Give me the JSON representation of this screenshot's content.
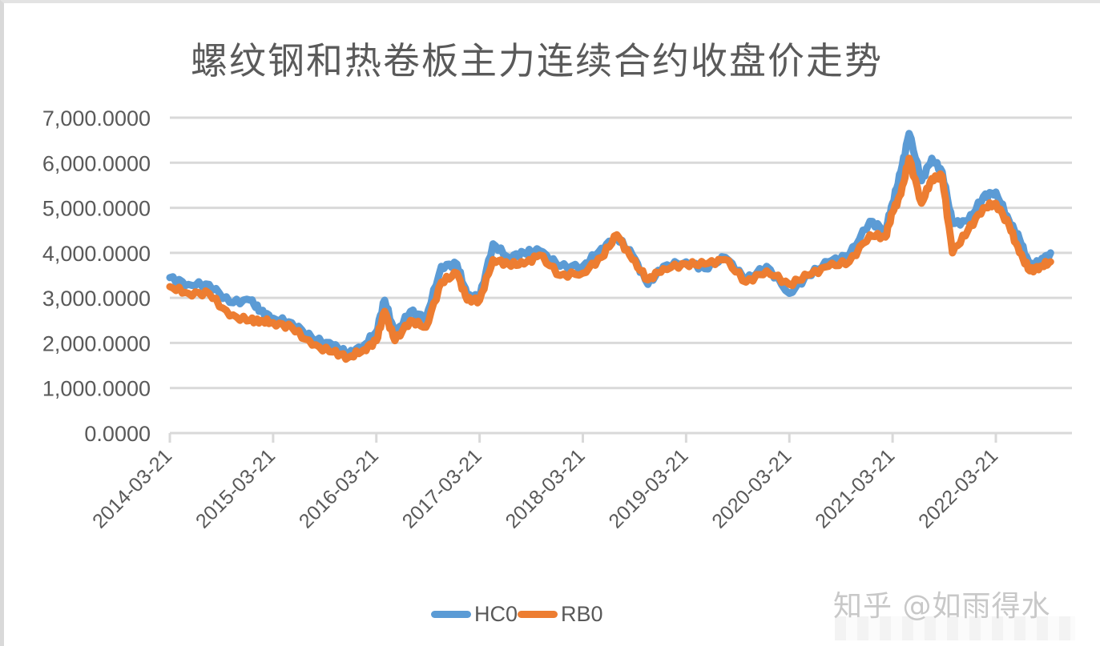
{
  "chart_title": "螺纹钢和热卷板主力连续合约收盘价走势",
  "legend": {
    "items": [
      {
        "label": "HC0",
        "color": "#5B9BD5"
      },
      {
        "label": "RB0",
        "color": "#ED7D31"
      }
    ]
  },
  "watermark": "知乎 @如雨得水",
  "colors": {
    "grid": "#d9d9d9",
    "axis_text": "#595959",
    "title": "#5a5a5a",
    "hc0": "#5B9BD5",
    "rb0": "#ED7D31"
  },
  "chart_data": {
    "type": "line",
    "title": "螺纹钢和热卷板主力连续合约收盘价走势",
    "xlabel": "",
    "ylabel": "",
    "ylim": [
      0,
      7000
    ],
    "yticks": [
      "0.0000",
      "1,000.0000",
      "2,000.0000",
      "3,000.0000",
      "4,000.0000",
      "5,000.0000",
      "6,000.0000",
      "7,000.0000"
    ],
    "xticks": [
      "2014-03-21",
      "2015-03-21",
      "2016-03-21",
      "2017-03-21",
      "2018-03-21",
      "2019-03-21",
      "2020-03-21",
      "2021-03-21",
      "2022-03-21"
    ],
    "grid": true,
    "legend_position": "bottom",
    "x": [
      2014.22,
      2014.4,
      2014.6,
      2014.8,
      2015.0,
      2015.1,
      2015.22,
      2015.4,
      2015.6,
      2015.8,
      2015.95,
      2016.1,
      2016.22,
      2016.3,
      2016.4,
      2016.55,
      2016.7,
      2016.85,
      2017.0,
      2017.1,
      2017.22,
      2017.35,
      2017.5,
      2017.65,
      2017.8,
      2018.0,
      2018.22,
      2018.4,
      2018.55,
      2018.7,
      2018.85,
      2019.0,
      2019.22,
      2019.4,
      2019.6,
      2019.8,
      2020.0,
      2020.22,
      2020.4,
      2020.6,
      2020.8,
      2021.0,
      2021.15,
      2021.22,
      2021.3,
      2021.38,
      2021.5,
      2021.6,
      2021.7,
      2021.8,
      2021.95,
      2022.1,
      2022.22,
      2022.35,
      2022.45,
      2022.55,
      2022.65,
      2022.75
    ],
    "series": [
      {
        "name": "HC0",
        "values": [
          3450,
          3300,
          3300,
          2900,
          2950,
          2700,
          2550,
          2450,
          2100,
          1950,
          1750,
          1950,
          2250,
          2950,
          2200,
          2700,
          2550,
          3700,
          3750,
          3050,
          3000,
          4200,
          3900,
          4000,
          4050,
          3700,
          3700,
          4100,
          4350,
          3950,
          3300,
          3700,
          3800,
          3650,
          3900,
          3400,
          3700,
          3100,
          3500,
          3800,
          3950,
          4700,
          4500,
          5100,
          5800,
          6650,
          5600,
          6100,
          5800,
          4650,
          4700,
          5250,
          5350,
          4700,
          4300,
          3700,
          3800,
          4000
        ]
      },
      {
        "name": "RB0",
        "values": [
          3250,
          3100,
          3100,
          2600,
          2500,
          2500,
          2450,
          2350,
          1950,
          1800,
          1680,
          1850,
          2050,
          2700,
          2050,
          2500,
          2350,
          3350,
          3550,
          2950,
          2950,
          3850,
          3750,
          3750,
          3950,
          3500,
          3550,
          3900,
          4400,
          3850,
          3400,
          3650,
          3750,
          3750,
          3850,
          3350,
          3600,
          3300,
          3500,
          3700,
          3800,
          4400,
          4350,
          4900,
          5300,
          6100,
          5100,
          5650,
          5700,
          4000,
          4500,
          5000,
          5100,
          4600,
          4000,
          3600,
          3700,
          3800
        ]
      }
    ]
  }
}
